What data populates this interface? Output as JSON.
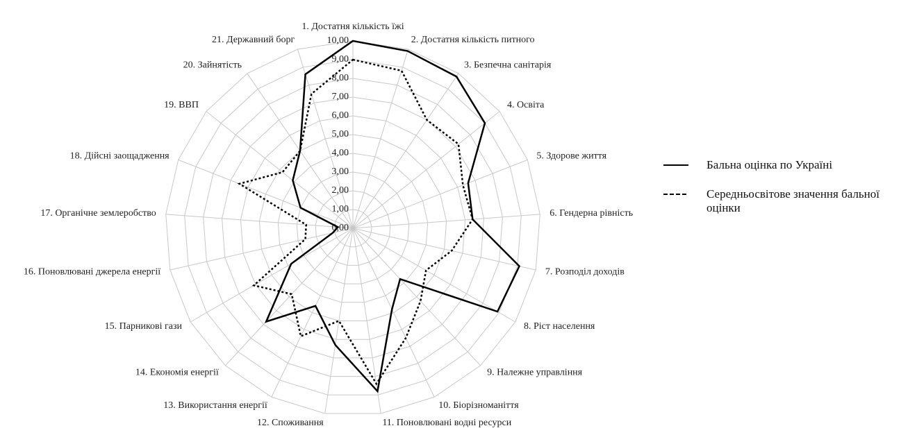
{
  "chart_data": {
    "type": "radar",
    "categories": [
      "1. Достатня кількість їжі",
      "2. Достатня кількість питного",
      "3. Безпечна санітарія",
      "4. Освіта",
      "5. Здорове життя",
      "6. Гендерна рівність",
      "7. Розподіл доходів",
      "8. Ріст населення",
      "9. Належне управління",
      "10. Біорізноманіття",
      "11. Поновлювані водні ресурси",
      "12. Споживання",
      "13. Використання енергії",
      "14. Економія енергії",
      "15. Парникові гази",
      "16. Поновлювані джерела енергії",
      "17. Органічне землеробство",
      "18. Дійсні заощадження",
      "19. ВВП",
      "20. Зайнятість",
      "21. Державний борг"
    ],
    "series": [
      {
        "name": "Бальна оцінка по Україні",
        "color": "#000000",
        "line_style": "solid",
        "values": [
          10.0,
          9.9,
          9.8,
          9.0,
          6.6,
          6.4,
          9.1,
          8.9,
          3.7,
          4.8,
          8.8,
          6.3,
          4.6,
          6.8,
          3.8,
          1.1,
          0.8,
          3.0,
          4.1,
          5.0,
          8.6
        ]
      },
      {
        "name": "Середньосвітове значення бальної оцінки",
        "color": "#000000",
        "line_style": "dotted",
        "values": [
          9.0,
          8.8,
          7.0,
          7.2,
          6.3,
          6.4,
          5.4,
          4.5,
          5.3,
          6.5,
          8.4,
          5.0,
          6.4,
          4.8,
          6.1,
          2.6,
          2.5,
          6.5,
          4.8,
          5.0,
          7.5
        ]
      }
    ],
    "rlim": [
      0,
      10
    ],
    "rticks": [
      {
        "value": 0,
        "label": "0,00"
      },
      {
        "value": 1,
        "label": "1,00"
      },
      {
        "value": 2,
        "label": "2,00"
      },
      {
        "value": 3,
        "label": "3,00"
      },
      {
        "value": 4,
        "label": "4,00"
      },
      {
        "value": 5,
        "label": "5,00"
      },
      {
        "value": 6,
        "label": "6,00"
      },
      {
        "value": 7,
        "label": "7,00"
      },
      {
        "value": 8,
        "label": "8,00"
      },
      {
        "value": 9,
        "label": "9,00"
      },
      {
        "value": 10,
        "label": "10,00"
      }
    ],
    "grid": true,
    "legend": "right"
  }
}
